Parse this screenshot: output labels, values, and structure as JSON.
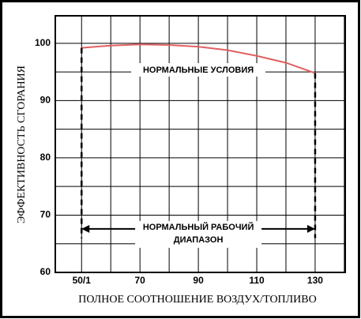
{
  "chart_data": {
    "type": "line",
    "xlabel": "ПОЛНОЕ СООТНОШЕНИЕ ВОЗДУХ/ТОПЛИВО",
    "ylabel": "ЭФФЕКТИВНОСТЬ СГОРАНИЯ",
    "x": [
      50,
      60,
      70,
      80,
      90,
      100,
      110,
      120,
      130
    ],
    "values": [
      99.2,
      99.6,
      99.8,
      99.7,
      99.4,
      98.8,
      97.8,
      96.6,
      94.8
    ],
    "color": "#e06060",
    "xlim": [
      41,
      140.3
    ],
    "ylim": [
      60,
      104.8
    ],
    "xticks": [
      {
        "value": 50,
        "label": "50/1"
      },
      70,
      90,
      110,
      130
    ],
    "yticks": [
      60,
      70,
      80,
      90,
      100
    ],
    "xminor": [
      60,
      80,
      100,
      120,
      140
    ],
    "yminor": [
      65,
      75,
      85,
      95
    ],
    "grid": true,
    "normal_range": [
      50,
      130
    ],
    "annotations": {
      "conditions": "НОРМАЛЬНЫЕ УСЛОВИЯ",
      "range_line1": "НОРМАЛЬНЫЙ РАБОЧИЙ",
      "range_line2": "ДИАПАЗОН"
    }
  }
}
